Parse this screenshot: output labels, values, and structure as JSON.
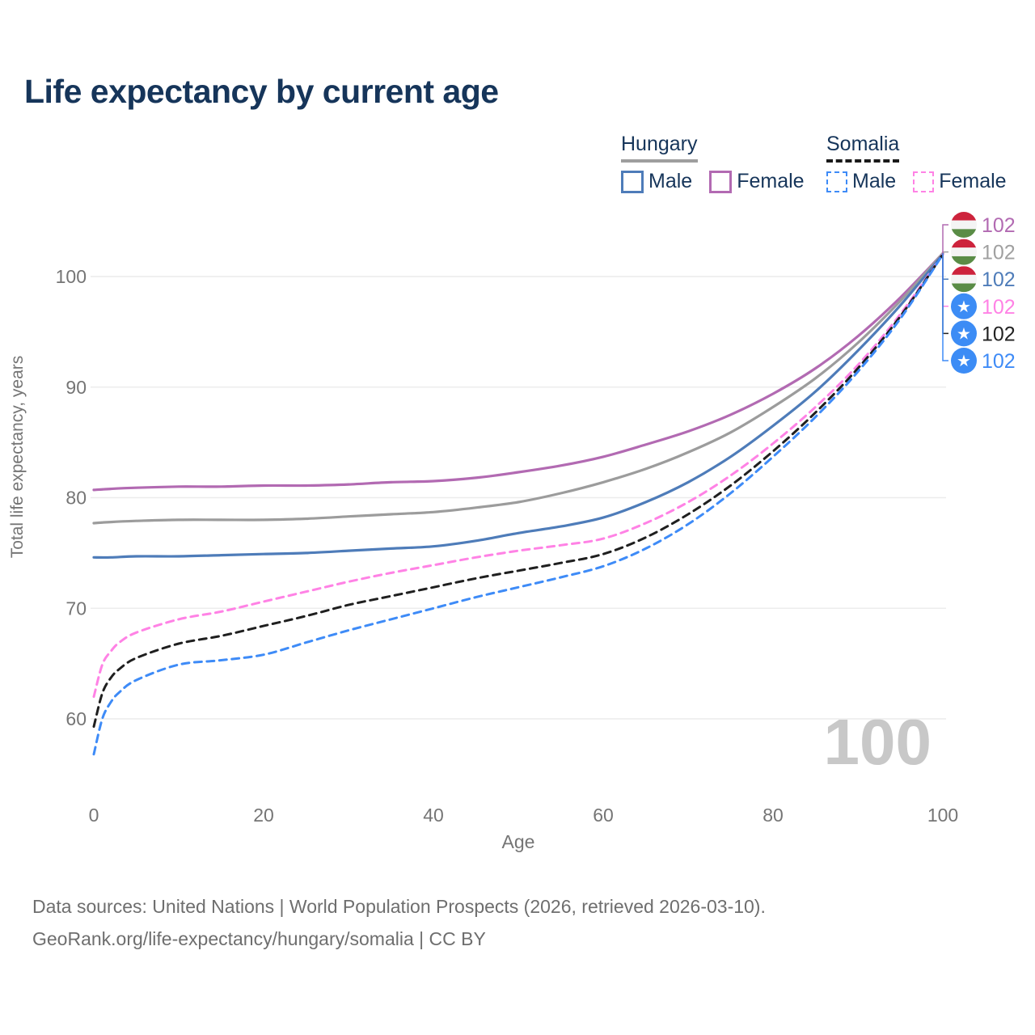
{
  "page": {
    "title": "Life expectancy by current age",
    "watermark": "100",
    "footer_line1": "Data sources: United Nations | World Population Prospects (2026, retrieved 2026-03-10).",
    "footer_line2": "GeoRank.org/life-expectancy/hungary/somalia | CC BY"
  },
  "legend": {
    "groups": [
      {
        "country": "Hungary",
        "line_style": "solid",
        "items": [
          {
            "label": "Male",
            "color": "#4e7cb9",
            "dash": false
          },
          {
            "label": "Female",
            "color": "#b26ab2",
            "dash": false
          }
        ]
      },
      {
        "country": "Somalia",
        "line_style": "dashed",
        "items": [
          {
            "label": "Male",
            "color": "#3e8bf7",
            "dash": true
          },
          {
            "label": "Female",
            "color": "#ff82e5",
            "dash": true
          }
        ]
      }
    ]
  },
  "chart_data": {
    "type": "line",
    "title": "Life expectancy by current age",
    "xlabel": "Age",
    "ylabel": "Total life expectancy, years",
    "xlim": [
      0,
      100
    ],
    "ylim": [
      55,
      104
    ],
    "x_ticks": [
      0,
      20,
      40,
      60,
      80,
      100
    ],
    "y_ticks": [
      60,
      70,
      80,
      90,
      100
    ],
    "grid": "horizontal",
    "legend_position": "top-right",
    "axis_color": "#757575",
    "gridline_color": "#ececec",
    "series": [
      {
        "id": "hungary-female",
        "country": "Hungary",
        "sex": "Female",
        "color": "#b26ab2",
        "dash": false,
        "points": [
          [
            0,
            80.7
          ],
          [
            2,
            80.8
          ],
          [
            5,
            80.9
          ],
          [
            10,
            81.0
          ],
          [
            15,
            81.0
          ],
          [
            20,
            81.1
          ],
          [
            25,
            81.1
          ],
          [
            30,
            81.2
          ],
          [
            35,
            81.4
          ],
          [
            40,
            81.5
          ],
          [
            45,
            81.8
          ],
          [
            50,
            82.3
          ],
          [
            55,
            82.9
          ],
          [
            60,
            83.7
          ],
          [
            65,
            84.8
          ],
          [
            70,
            86.0
          ],
          [
            75,
            87.5
          ],
          [
            80,
            89.4
          ],
          [
            85,
            91.7
          ],
          [
            90,
            94.6
          ],
          [
            95,
            98.1
          ],
          [
            100,
            102.1
          ]
        ]
      },
      {
        "id": "hungary-total",
        "country": "Hungary",
        "sex": "Both",
        "color": "#9c9c9c",
        "dash": false,
        "points": [
          [
            0,
            77.7
          ],
          [
            2,
            77.8
          ],
          [
            5,
            77.9
          ],
          [
            10,
            78.0
          ],
          [
            15,
            78.0
          ],
          [
            20,
            78.0
          ],
          [
            25,
            78.1
          ],
          [
            30,
            78.3
          ],
          [
            35,
            78.5
          ],
          [
            40,
            78.7
          ],
          [
            45,
            79.1
          ],
          [
            50,
            79.6
          ],
          [
            55,
            80.4
          ],
          [
            60,
            81.4
          ],
          [
            65,
            82.6
          ],
          [
            70,
            84.1
          ],
          [
            75,
            85.9
          ],
          [
            80,
            88.2
          ],
          [
            85,
            90.8
          ],
          [
            90,
            94.0
          ],
          [
            95,
            97.8
          ],
          [
            100,
            102.1
          ]
        ]
      },
      {
        "id": "hungary-male",
        "country": "Hungary",
        "sex": "Male",
        "color": "#4e7cb9",
        "dash": false,
        "points": [
          [
            0,
            74.6
          ],
          [
            2,
            74.6
          ],
          [
            5,
            74.7
          ],
          [
            10,
            74.7
          ],
          [
            15,
            74.8
          ],
          [
            20,
            74.9
          ],
          [
            25,
            75.0
          ],
          [
            30,
            75.2
          ],
          [
            35,
            75.4
          ],
          [
            40,
            75.6
          ],
          [
            45,
            76.1
          ],
          [
            50,
            76.8
          ],
          [
            55,
            77.4
          ],
          [
            60,
            78.2
          ],
          [
            65,
            79.6
          ],
          [
            70,
            81.4
          ],
          [
            75,
            83.7
          ],
          [
            80,
            86.5
          ],
          [
            85,
            89.6
          ],
          [
            90,
            93.3
          ],
          [
            95,
            97.4
          ],
          [
            100,
            102.0
          ]
        ]
      },
      {
        "id": "somalia-female",
        "country": "Somalia",
        "sex": "Female",
        "color": "#ff82e5",
        "dash": true,
        "points": [
          [
            0,
            62.0
          ],
          [
            1,
            64.9
          ],
          [
            2,
            66.1
          ],
          [
            3,
            66.9
          ],
          [
            5,
            67.8
          ],
          [
            10,
            69.0
          ],
          [
            15,
            69.7
          ],
          [
            20,
            70.6
          ],
          [
            25,
            71.5
          ],
          [
            30,
            72.4
          ],
          [
            35,
            73.2
          ],
          [
            40,
            73.9
          ],
          [
            45,
            74.6
          ],
          [
            50,
            75.2
          ],
          [
            55,
            75.7
          ],
          [
            60,
            76.3
          ],
          [
            65,
            77.7
          ],
          [
            70,
            79.6
          ],
          [
            75,
            82.0
          ],
          [
            80,
            84.9
          ],
          [
            85,
            88.2
          ],
          [
            90,
            92.0
          ],
          [
            95,
            96.6
          ],
          [
            100,
            102.0
          ]
        ]
      },
      {
        "id": "somalia-total",
        "country": "Somalia",
        "sex": "Both",
        "color": "#1f1f1f",
        "dash": true,
        "points": [
          [
            0,
            59.3
          ],
          [
            1,
            62.3
          ],
          [
            2,
            63.7
          ],
          [
            3,
            64.5
          ],
          [
            5,
            65.5
          ],
          [
            10,
            66.8
          ],
          [
            15,
            67.5
          ],
          [
            20,
            68.4
          ],
          [
            25,
            69.3
          ],
          [
            30,
            70.3
          ],
          [
            35,
            71.1
          ],
          [
            40,
            71.9
          ],
          [
            45,
            72.7
          ],
          [
            50,
            73.4
          ],
          [
            55,
            74.1
          ],
          [
            60,
            74.9
          ],
          [
            65,
            76.4
          ],
          [
            70,
            78.5
          ],
          [
            75,
            81.1
          ],
          [
            80,
            84.2
          ],
          [
            85,
            87.7
          ],
          [
            90,
            91.7
          ],
          [
            95,
            96.4
          ],
          [
            100,
            102.0
          ]
        ]
      },
      {
        "id": "somalia-male",
        "country": "Somalia",
        "sex": "Male",
        "color": "#3e8bf7",
        "dash": true,
        "points": [
          [
            0,
            56.8
          ],
          [
            1,
            60.0
          ],
          [
            2,
            61.5
          ],
          [
            3,
            62.4
          ],
          [
            5,
            63.5
          ],
          [
            10,
            64.9
          ],
          [
            15,
            65.3
          ],
          [
            20,
            65.8
          ],
          [
            25,
            66.9
          ],
          [
            30,
            68.0
          ],
          [
            35,
            69.0
          ],
          [
            40,
            70.0
          ],
          [
            45,
            71.0
          ],
          [
            50,
            71.9
          ],
          [
            55,
            72.8
          ],
          [
            60,
            73.8
          ],
          [
            65,
            75.4
          ],
          [
            70,
            77.6
          ],
          [
            75,
            80.4
          ],
          [
            80,
            83.7
          ],
          [
            85,
            87.3
          ],
          [
            90,
            91.4
          ],
          [
            95,
            96.2
          ],
          [
            100,
            102.0
          ]
        ]
      }
    ],
    "end_labels": [
      {
        "flag": "hungary",
        "series": "hungary-female",
        "text": "102",
        "color": "#b26ab2"
      },
      {
        "flag": "hungary",
        "series": "hungary-total",
        "text": "102",
        "color": "#a0a0a0"
      },
      {
        "flag": "hungary",
        "series": "hungary-male",
        "text": "102",
        "color": "#4e7cb9"
      },
      {
        "flag": "somalia",
        "series": "somalia-female",
        "text": "102",
        "color": "#ff82e5"
      },
      {
        "flag": "somalia",
        "series": "somalia-total",
        "text": "102",
        "color": "#222222"
      },
      {
        "flag": "somalia",
        "series": "somalia-male",
        "text": "102",
        "color": "#3e8bf7"
      }
    ],
    "flag_colors": {
      "hungary_red": "#cd233c",
      "hungary_white": "#f4f4f4",
      "hungary_green": "#5a8c46",
      "somalia_blue": "#3c8cf5",
      "somalia_star": "#ffffff"
    }
  }
}
